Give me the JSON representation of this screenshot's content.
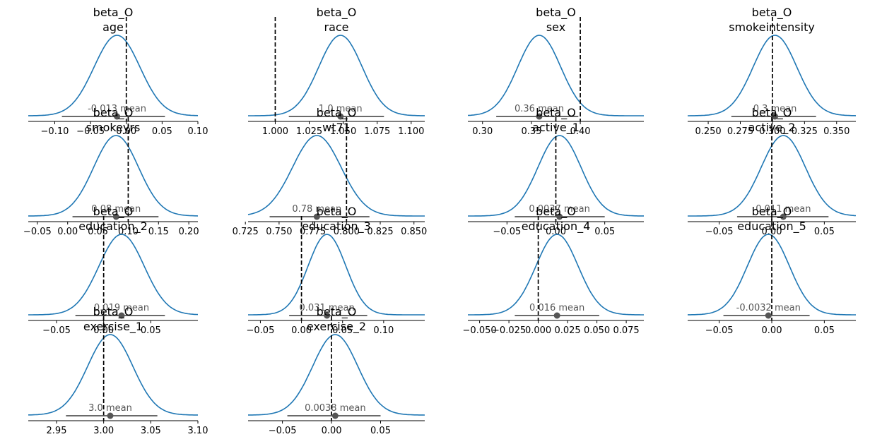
{
  "chart_data": [
    {
      "type": "density",
      "title": [
        "beta_O",
        "age"
      ],
      "xticks": [
        -0.1,
        -0.05,
        0.0,
        0.05,
        0.1
      ],
      "xtick_labels": [
        "−0.10",
        "−0.05",
        "0.00",
        "0.05",
        "0.10"
      ],
      "xlim": [
        -0.137,
        0.1
      ],
      "mean": -0.013,
      "mean_label": "-0.013 mean",
      "hdi": [
        -0.09,
        0.054
      ],
      "ref_line": 0.0,
      "kde_sd": 0.032,
      "line_color": "#1f77b4"
    },
    {
      "type": "density",
      "title": [
        "beta_O",
        "race"
      ],
      "xticks": [
        1.0,
        1.025,
        1.05,
        1.075,
        1.1
      ],
      "xtick_labels": [
        "1.000",
        "1.025",
        "1.050",
        "1.075",
        "1.100"
      ],
      "xlim": [
        0.98,
        1.11
      ],
      "mean": 1.048,
      "mean_label": "1.0 mean",
      "hdi": [
        1.01,
        1.08
      ],
      "ref_line": 1.0,
      "kde_sd": 0.016,
      "line_color": "#1f77b4"
    },
    {
      "type": "density",
      "title": [
        "beta_O",
        "sex"
      ],
      "xticks": [
        0.3,
        0.35,
        0.4
      ],
      "xtick_labels": [
        "0.30",
        "0.35",
        "0.40"
      ],
      "xlim": [
        0.285,
        0.465
      ],
      "mean": 0.358,
      "mean_label": "0.36 mean",
      "hdi": [
        0.314,
        0.398
      ],
      "ref_line": 0.4,
      "kde_sd": 0.022,
      "line_color": "#1f77b4"
    },
    {
      "type": "density",
      "title": [
        "beta_O",
        "smokeintensity"
      ],
      "xticks": [
        0.25,
        0.275,
        0.3,
        0.325,
        0.35
      ],
      "xtick_labels": [
        "0.250",
        "0.275",
        "0.300",
        "0.325",
        "0.350"
      ],
      "xlim": [
        0.234,
        0.365
      ],
      "mean": 0.302,
      "mean_label": "0.3 mean",
      "hdi": [
        0.268,
        0.334
      ],
      "ref_line": 0.3,
      "kde_sd": 0.017,
      "line_color": "#1f77b4"
    },
    {
      "type": "density",
      "title": [
        "beta_O",
        "smokeyrs"
      ],
      "xticks": [
        -0.05,
        0.0,
        0.05,
        0.1,
        0.15,
        0.2
      ],
      "xtick_labels": [
        "−0.05",
        "0.00",
        "0.05",
        "0.10",
        "0.15",
        "0.20"
      ],
      "xlim": [
        -0.065,
        0.215
      ],
      "mean": 0.08,
      "mean_label": "0.08 mean",
      "hdi": [
        0.008,
        0.15
      ],
      "ref_line": 0.1,
      "kde_sd": 0.037,
      "line_color": "#1f77b4"
    },
    {
      "type": "density",
      "title": [
        "beta_O",
        "wt71"
      ],
      "xticks": [
        0.725,
        0.75,
        0.775,
        0.8,
        0.825,
        0.85
      ],
      "xtick_labels": [
        "0.725",
        "0.750",
        "0.775",
        "0.800",
        "0.825",
        "0.850"
      ],
      "xlim": [
        0.727,
        0.858
      ],
      "mean": 0.778,
      "mean_label": "0.78 mean",
      "hdi": [
        0.743,
        0.817
      ],
      "ref_line": 0.8,
      "kde_sd": 0.018,
      "line_color": "#1f77b4"
    },
    {
      "type": "density",
      "title": [
        "beta_O",
        "active_1"
      ],
      "xticks": [
        -0.05,
        0.0,
        0.05
      ],
      "xtick_labels": [
        "−0.05",
        "0.00",
        "0.05"
      ],
      "xlim": [
        -0.09,
        0.09
      ],
      "mean": 0.0037,
      "mean_label": "0.0037 mean",
      "hdi": [
        -0.042,
        0.05
      ],
      "ref_line": 0.0,
      "kde_sd": 0.022,
      "line_color": "#1f77b4"
    },
    {
      "type": "density",
      "title": [
        "beta_O",
        "active_2"
      ],
      "xticks": [
        -0.05,
        0.0,
        0.05
      ],
      "xtick_labels": [
        "−0.05",
        "0.00",
        "0.05"
      ],
      "xlim": [
        -0.08,
        0.08
      ],
      "mean": 0.011,
      "mean_label": "0.011 mean",
      "hdi": [
        -0.033,
        0.054
      ],
      "ref_line": 0.0,
      "kde_sd": 0.021,
      "line_color": "#1f77b4"
    },
    {
      "type": "density",
      "title": [
        "beta_O",
        "education_2"
      ],
      "xticks": [
        -0.05,
        0.0,
        0.05
      ],
      "xtick_labels": [
        "−0.05",
        "0.00",
        "0.05"
      ],
      "xlim": [
        -0.08,
        0.1
      ],
      "mean": 0.019,
      "mean_label": "0.019 mean",
      "hdi": [
        -0.03,
        0.065
      ],
      "ref_line": 0.0,
      "kde_sd": 0.024,
      "line_color": "#1f77b4"
    },
    {
      "type": "density",
      "title": [
        "beta_O",
        "education_3"
      ],
      "xticks": [
        -0.05,
        0.0,
        0.05,
        0.1
      ],
      "xtick_labels": [
        "−0.05",
        "0.00",
        "0.05",
        "0.10"
      ],
      "xlim": [
        -0.065,
        0.15
      ],
      "mean": 0.031,
      "mean_label": "0.031 mean",
      "hdi": [
        -0.015,
        0.08
      ],
      "ref_line": 0.0,
      "kde_sd": 0.023,
      "line_color": "#1f77b4"
    },
    {
      "type": "density",
      "title": [
        "beta_O",
        "education_4"
      ],
      "xticks": [
        -0.05,
        -0.025,
        0.0,
        0.025,
        0.05,
        0.075
      ],
      "xtick_labels": [
        "−0.050",
        "−0.025",
        "0.000",
        "0.025",
        "0.050",
        "0.075"
      ],
      "xlim": [
        -0.06,
        0.09
      ],
      "mean": 0.016,
      "mean_label": "0.016 mean",
      "hdi": [
        -0.02,
        0.052
      ],
      "ref_line": 0.0,
      "kde_sd": 0.018,
      "line_color": "#1f77b4"
    },
    {
      "type": "density",
      "title": [
        "beta_O",
        "education_5"
      ],
      "xticks": [
        -0.05,
        0.0,
        0.05
      ],
      "xtick_labels": [
        "−0.05",
        "0.00",
        "0.05"
      ],
      "xlim": [
        -0.08,
        0.08
      ],
      "mean": -0.0032,
      "mean_label": "-0.0032 mean",
      "hdi": [
        -0.046,
        0.036
      ],
      "ref_line": 0.0,
      "kde_sd": 0.02,
      "line_color": "#1f77b4"
    },
    {
      "type": "density",
      "title": [
        "beta_O",
        "exercise_1"
      ],
      "xticks": [
        2.95,
        3.0,
        3.05,
        3.1
      ],
      "xtick_labels": [
        "2.95",
        "3.00",
        "3.05",
        "3.10"
      ],
      "xlim": [
        2.92,
        3.1
      ],
      "mean": 3.007,
      "mean_label": "3.0 mean",
      "hdi": [
        2.96,
        3.057
      ],
      "ref_line": 3.0,
      "kde_sd": 0.024,
      "line_color": "#1f77b4"
    },
    {
      "type": "density",
      "title": [
        "beta_O",
        "exercise_2"
      ],
      "xticks": [
        -0.05,
        0.0,
        0.05
      ],
      "xtick_labels": [
        "−0.05",
        "0.00",
        "0.05"
      ],
      "xlim": [
        -0.085,
        0.095
      ],
      "mean": 0.0038,
      "mean_label": "0.0038 mean",
      "hdi": [
        -0.045,
        0.05
      ],
      "ref_line": 0.0,
      "kde_sd": 0.023,
      "line_color": "#1f77b4"
    }
  ]
}
